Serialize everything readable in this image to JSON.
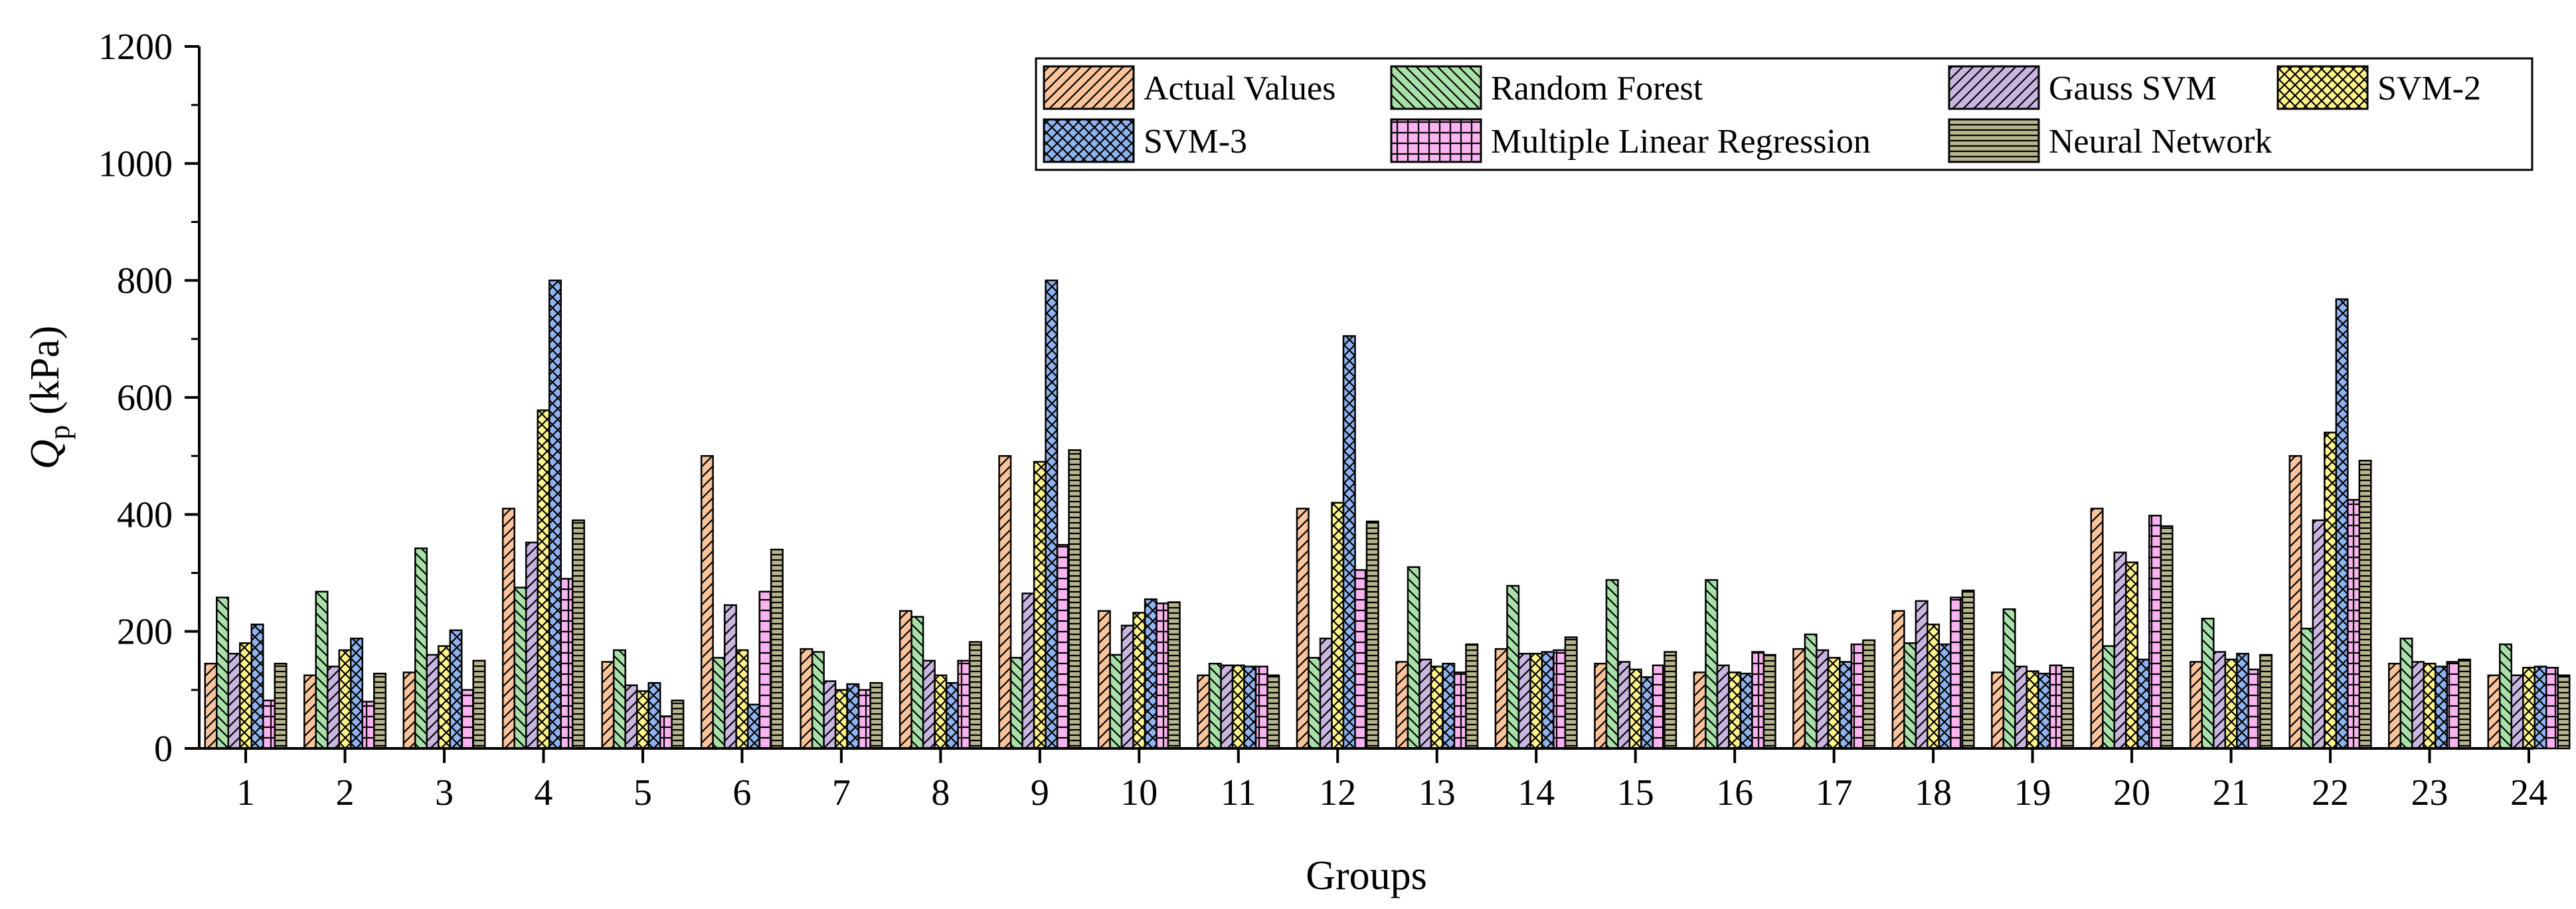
{
  "chart_data": {
    "type": "bar",
    "title": "",
    "xlabel": "Groups",
    "ylabel": {
      "symbol": "Q",
      "subscript": "p",
      "unit": " (kPa)"
    },
    "ylim": [
      0,
      1200
    ],
    "yticks": [
      0,
      200,
      400,
      600,
      800,
      1000,
      1200
    ],
    "categories": [
      "1",
      "2",
      "3",
      "4",
      "5",
      "6",
      "7",
      "8",
      "9",
      "10",
      "11",
      "12",
      "13",
      "14",
      "15",
      "16",
      "17",
      "18",
      "19",
      "20",
      "21",
      "22",
      "23",
      "24"
    ],
    "legend_position": "top-right",
    "series": [
      {
        "name": "Actual Values",
        "color": "#F9C49B",
        "pattern": "hatch-right",
        "values": [
          145,
          125,
          130,
          410,
          148,
          500,
          170,
          235,
          500,
          235,
          125,
          410,
          148,
          170,
          145,
          130,
          170,
          235,
          130,
          410,
          148,
          500,
          145,
          125
        ]
      },
      {
        "name": "Random Forest",
        "color": "#A9E0A9",
        "pattern": "hatch-left",
        "values": [
          258,
          268,
          342,
          275,
          168,
          155,
          165,
          225,
          155,
          160,
          145,
          155,
          310,
          278,
          288,
          288,
          195,
          180,
          238,
          175,
          222,
          205,
          188,
          178
        ]
      },
      {
        "name": "Gauss SVM",
        "color": "#C9B6E0",
        "pattern": "hatch-right",
        "values": [
          162,
          140,
          160,
          352,
          108,
          245,
          115,
          150,
          265,
          210,
          142,
          188,
          152,
          162,
          148,
          142,
          168,
          252,
          140,
          335,
          165,
          390,
          148,
          125
        ]
      },
      {
        "name": "SVM-2",
        "color": "#FFF38C",
        "pattern": "cross",
        "values": [
          180,
          168,
          175,
          578,
          98,
          168,
          100,
          125,
          490,
          232,
          142,
          420,
          140,
          162,
          135,
          130,
          155,
          212,
          132,
          318,
          152,
          540,
          145,
          138
        ]
      },
      {
        "name": "SVM-3",
        "color": "#8FB3EE",
        "pattern": "cross",
        "values": [
          212,
          188,
          202,
          800,
          112,
          75,
          110,
          112,
          800,
          255,
          140,
          705,
          145,
          165,
          122,
          128,
          148,
          178,
          128,
          152,
          162,
          768,
          140,
          140
        ]
      },
      {
        "name": "Multiple Linear Regression",
        "color": "#F9B4F0",
        "pattern": "grid",
        "values": [
          82,
          80,
          100,
          290,
          55,
          268,
          100,
          150,
          348,
          248,
          140,
          305,
          130,
          168,
          142,
          165,
          178,
          258,
          142,
          398,
          135,
          425,
          148,
          138
        ]
      },
      {
        "name": "Neural Network",
        "color": "#B7B58E",
        "pattern": "horizontal",
        "values": [
          145,
          128,
          150,
          390,
          82,
          340,
          112,
          182,
          510,
          250,
          125,
          388,
          178,
          190,
          165,
          160,
          185,
          270,
          138,
          380,
          160,
          492,
          152,
          125
        ]
      }
    ]
  }
}
